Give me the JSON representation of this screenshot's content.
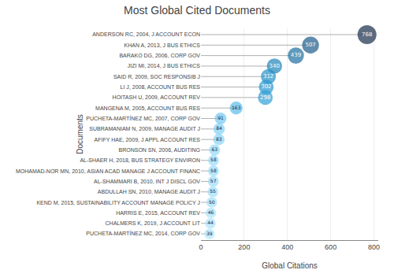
{
  "chart_data": {
    "type": "bubble",
    "title": "Most Global Cited Documents",
    "xlabel": "Global Citations",
    "ylabel": "Documents",
    "orientation": "horizontal",
    "categories": [
      "ANDERSON RC, 2004, J ACCOUNT ECON",
      "KHAN A, 2013, J BUS ETHICS",
      "BARAKO DG, 2006, CORP GOV",
      "JIZI MI, 2014, J BUS ETHICS",
      "SAID R, 2009, SOC RESPONSIB J",
      "LI J, 2008, ACCOUNT BUS RES",
      "HOITASH U, 2009, ACCOUNT REV",
      "MANGENA M, 2005, ACCOUNT BUS RES",
      "PUCHETA-MARTÍNEZ MC, 2007, CORP GOV",
      "SUBRAMANIAM N, 2009, MANAGE AUDIT J",
      "AFIFY HAE, 2009, J APPL ACCOUNT RES",
      "BRONSON SN, 2006, AUDITING",
      "AL-SHAER H, 2018, BUS STRATEGY ENVIRON",
      "MOHAMAD-NOR MN, 2010, ASIAN ACAD MANAGE J ACCOUNT FINANC",
      "AL-SHAMMARI B, 2010, INT J DISCL GOV",
      "ABDULLAH SN, 2010, MANAGE AUDIT J",
      "KEND M, 2015, SUSTAINABILITY ACCOUNT MANAGE POLICY J",
      "HARRIS E, 2015, ACCOUNT REV",
      "CHALMERS K, 2019, J ACCOUNT LIT",
      "PUCHETA-MARTÍNEZ MC, 2014, CORP GOV"
    ],
    "values": [
      768,
      507,
      439,
      340,
      312,
      302,
      298,
      163,
      91,
      84,
      83,
      63,
      58,
      58,
      57,
      55,
      50,
      46,
      44,
      39
    ],
    "colors": [
      "#1a2e4a",
      "#1d5c8a",
      "#1e6fa0",
      "#2185b8",
      "#2490c8",
      "#2898d0",
      "#30a0d5",
      "#5bbce8",
      "#72c8f0",
      "#82d0f5",
      "#8ad4f7",
      "#92d8f8",
      "#9adcf9",
      "#9adcf9",
      "#9cddf9",
      "#a0dffa",
      "#a4e0fa",
      "#a8e2fb",
      "#aae3fb",
      "#ace5fc"
    ],
    "xlim": [
      0,
      820
    ],
    "xticks": [
      0,
      200,
      400,
      600,
      800
    ],
    "grid": true,
    "data_labels": true
  }
}
